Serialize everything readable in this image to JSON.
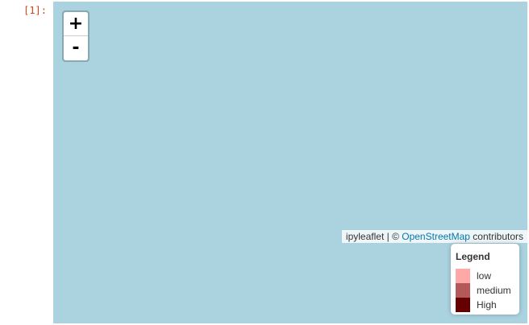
{
  "cell": {
    "prompt": "[1]:"
  },
  "map": {
    "background_color": "#aad3df",
    "zoom": {
      "in_label": "+",
      "out_label": "-"
    },
    "attribution": {
      "prefix": "ipyleaflet | © ",
      "link_text": "OpenStreetMap",
      "suffix": " contributors"
    }
  },
  "legend": {
    "title": "Legend",
    "items": [
      {
        "label": "low",
        "color": "#ffa8a8"
      },
      {
        "label": "medium",
        "color": "#b35959"
      },
      {
        "label": "High",
        "color": "#660000"
      }
    ]
  }
}
